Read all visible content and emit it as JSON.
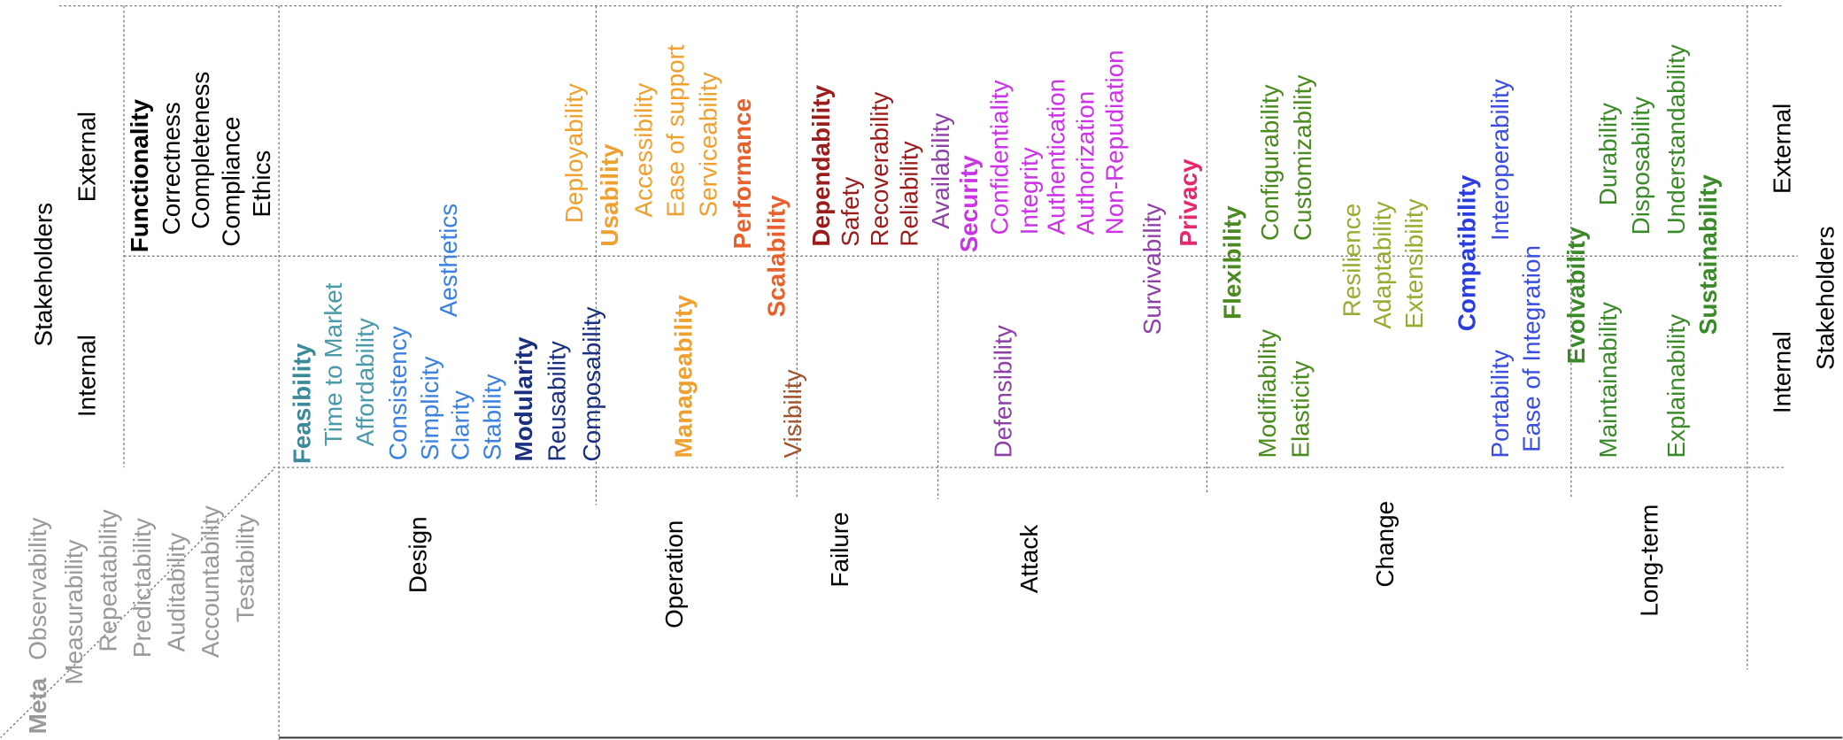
{
  "stakeholders_left": {
    "title": "Stakeholders",
    "external": "External",
    "internal": "Internal"
  },
  "stakeholders_right": {
    "title": "Stakeholders",
    "external": "External",
    "internal": "Internal"
  },
  "meta": {
    "title": "Meta",
    "items": [
      "Observability",
      "Measurability",
      "Repeatability",
      "Predictability",
      "Auditability",
      "Accountability",
      "Testability"
    ]
  },
  "areas": [
    "Design",
    "Operation",
    "Failure",
    "Attack",
    "Change",
    "Long-term"
  ],
  "attributes": [
    "Functionality",
    "Correctness",
    "Completeness",
    "Compliance",
    "Ethics",
    "Feasibility",
    "Time to Market",
    "Affordability",
    "Consistency",
    "Simplicity",
    "Aesthetics",
    "Clarity",
    "Stability",
    "Modularity",
    "Reusability",
    "Composability",
    "Deployability",
    "Usability",
    "Accessibility",
    "Ease of support",
    "Serviceability",
    "Manageability",
    "Performance",
    "Scalability",
    "Visibility",
    "Dependability",
    "Safety",
    "Recoverability",
    "Reliability",
    "Availability",
    "Security",
    "Confidentiality",
    "Integrity",
    "Authentication",
    "Authorization",
    "Non-Repudiation",
    "Defensibility",
    "Survivability",
    "Privacy",
    "Flexibility",
    "Configurability",
    "Customizability",
    "Modifiability",
    "Elasticity",
    "Resilience",
    "Adaptability",
    "Extensibility",
    "Compatibility",
    "Interoperability",
    "Portability",
    "Ease of Integration",
    "Evolvability",
    "Maintainability",
    "Durability",
    "Disposability",
    "Understandability",
    "Explainability",
    "Sustainability"
  ]
}
